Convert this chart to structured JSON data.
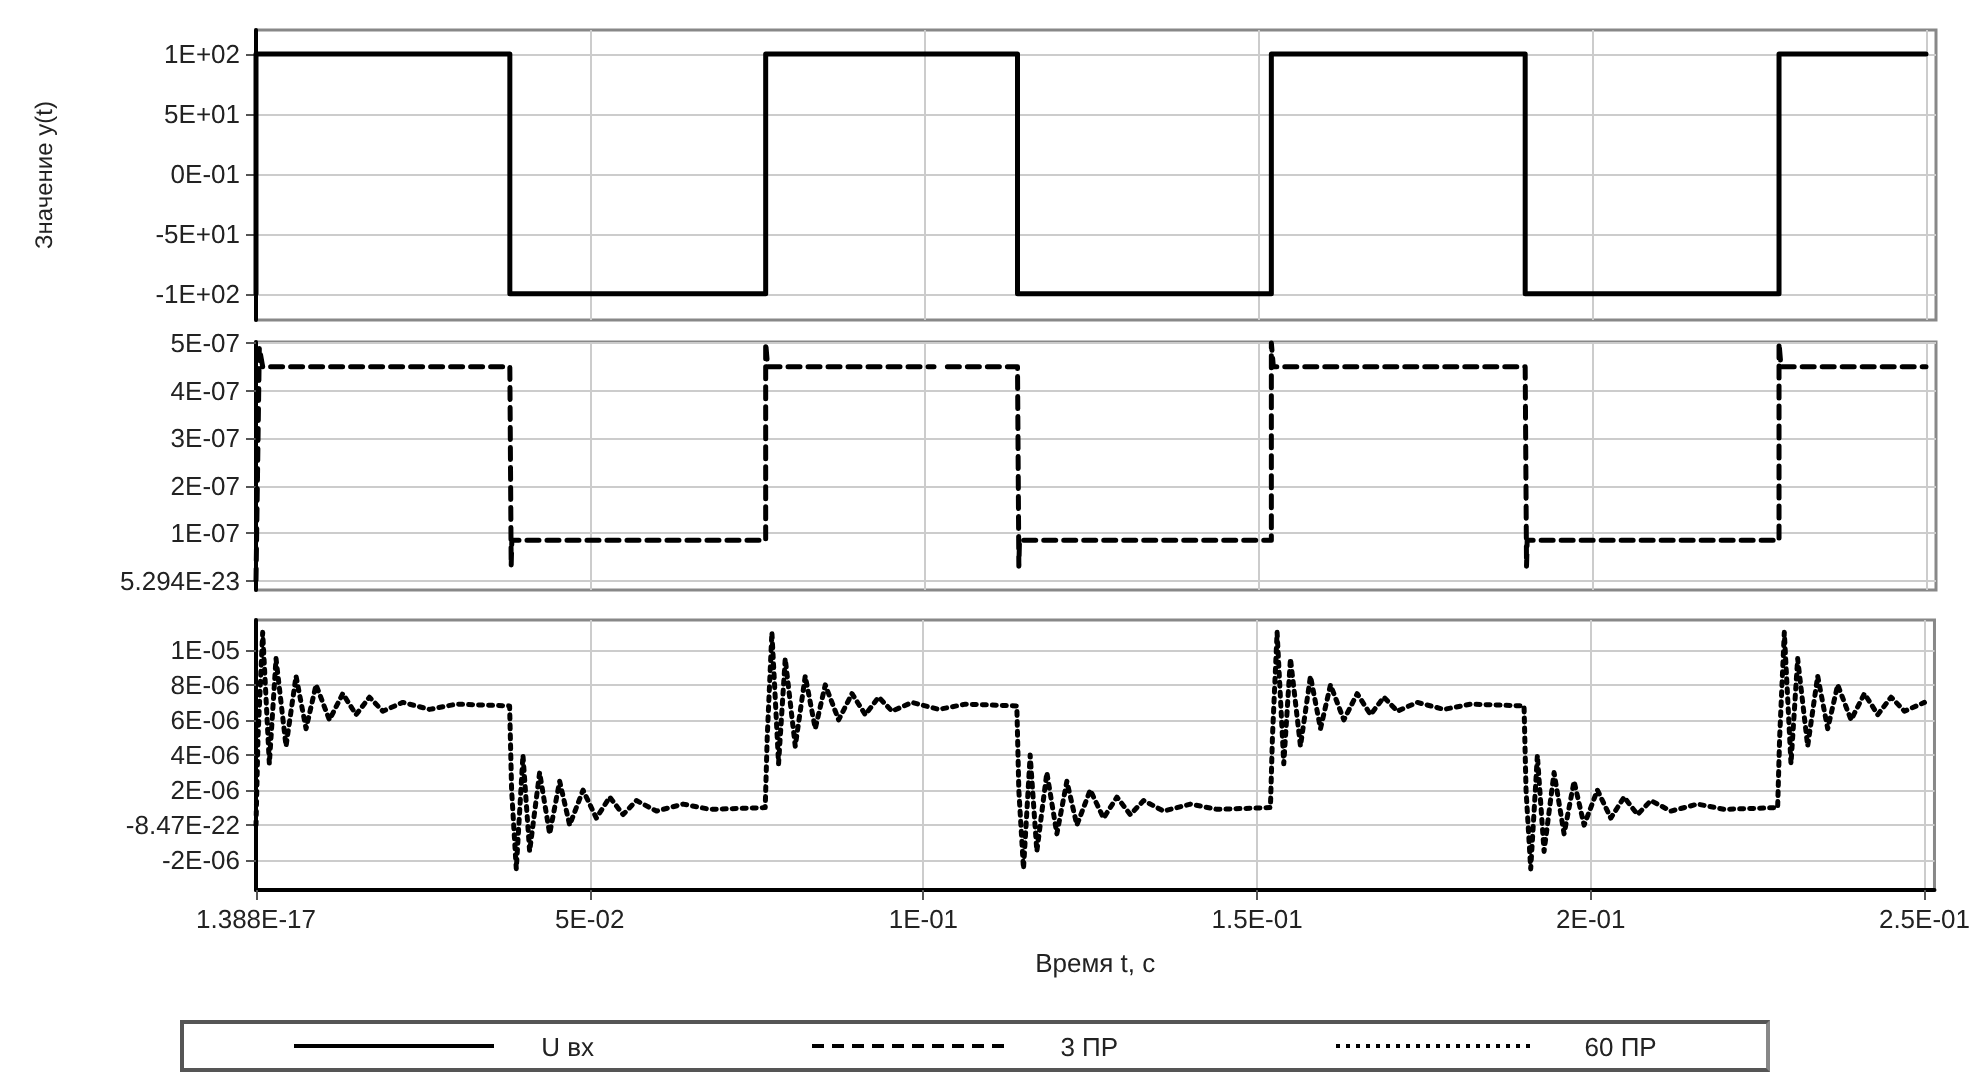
{
  "chart_data": [
    {
      "type": "line",
      "ylabel": "Значение y(t)",
      "xlim": [
        0,
        0.2515
      ],
      "ylim": [
        -122,
        120
      ],
      "xticks": [
        {
          "value": 1.388e-17,
          "label": null
        },
        {
          "value": 0.05,
          "label": null
        },
        {
          "value": 0.1,
          "label": null
        },
        {
          "value": 0.15,
          "label": null
        },
        {
          "value": 0.2,
          "label": null
        },
        {
          "value": 0.25,
          "label": null
        }
      ],
      "yticks": [
        {
          "value": -100,
          "label": "-1E+02"
        },
        {
          "value": -50,
          "label": "-5E+01"
        },
        {
          "value": 0,
          "label": "0E-01"
        },
        {
          "value": 50,
          "label": "5E+01"
        },
        {
          "value": 100,
          "label": "1E+02"
        }
      ],
      "grid": true,
      "tick_labels": "y",
      "legend": "bottom",
      "series": [
        {
          "name": "U вх",
          "color": "#000000",
          "line_style": "solid",
          "x": [
            0,
            0,
            0.038,
            0.038,
            0.0763,
            0.0763,
            0.114,
            0.114,
            0.152,
            0.152,
            0.19,
            0.19,
            0.228,
            0.228,
            0.25
          ],
          "values": [
            -100,
            100,
            100,
            -100,
            -100,
            100,
            100,
            -100,
            -100,
            100,
            100,
            -100,
            -100,
            100,
            100
          ]
        }
      ]
    },
    {
      "type": "line",
      "xlim": [
        0,
        0.2515
      ],
      "ylim": [
        -2e-08,
        5.02e-07
      ],
      "xticks": [
        {
          "value": 1.388e-17,
          "label": null
        },
        {
          "value": 0.05,
          "label": null
        },
        {
          "value": 0.1,
          "label": null
        },
        {
          "value": 0.15,
          "label": null
        },
        {
          "value": 0.2,
          "label": null
        },
        {
          "value": 0.25,
          "label": null
        }
      ],
      "yticks": [
        {
          "value": 5.294e-23,
          "label": "5.294E-23"
        },
        {
          "value": 1e-07,
          "label": "1E-07"
        },
        {
          "value": 2e-07,
          "label": "2E-07"
        },
        {
          "value": 3e-07,
          "label": "3E-07"
        },
        {
          "value": 4e-07,
          "label": "4E-07"
        },
        {
          "value": 5e-07,
          "label": "5E-07"
        }
      ],
      "grid": true,
      "tick_labels": "y",
      "legend": "bottom",
      "series": [
        {
          "name": "3 ПР",
          "color": "#000000",
          "line_style": "dashed",
          "x": [
            0,
            0.0005,
            0.001,
            0.038,
            0.0382,
            0.0383,
            0.0763,
            0.0763,
            0.0766,
            0.1015,
            0.1025,
            0.1035,
            0.114,
            0.1142,
            0.1143,
            0.152,
            0.152,
            0.1523,
            0.19,
            0.1902,
            0.1903,
            0.228,
            0.228,
            0.2283,
            0.25
          ],
          "values": [
            0,
            4.9e-07,
            4.5e-07,
            4.5e-07,
            3e-08,
            8.5e-08,
            8.5e-08,
            5e-07,
            4.5e-07,
            4.5e-07,
            null,
            4.5e-07,
            4.5e-07,
            3e-08,
            8.5e-08,
            8.5e-08,
            5e-07,
            4.5e-07,
            4.5e-07,
            3e-08,
            8.5e-08,
            8.5e-08,
            5e-07,
            4.5e-07,
            4.5e-07
          ]
        }
      ]
    },
    {
      "type": "line",
      "xlabel": "Время t, с",
      "xlim": [
        0,
        0.2515
      ],
      "ylim": [
        -3.7e-06,
        1.17e-05
      ],
      "xticks": [
        {
          "value": 1.388e-17,
          "label": "1.388E-17"
        },
        {
          "value": 0.05,
          "label": "5E-02"
        },
        {
          "value": 0.1,
          "label": "1E-01"
        },
        {
          "value": 0.15,
          "label": "1.5E-01"
        },
        {
          "value": 0.2,
          "label": "2E-01"
        },
        {
          "value": 0.25,
          "label": "2.5E-01"
        }
      ],
      "yticks": [
        {
          "value": -2e-06,
          "label": "-2E-06"
        },
        {
          "value": -8.47e-22,
          "label": "-8.47E-22"
        },
        {
          "value": 2e-06,
          "label": "2E-06"
        },
        {
          "value": 4e-06,
          "label": "4E-06"
        },
        {
          "value": 6e-06,
          "label": "6E-06"
        },
        {
          "value": 8e-06,
          "label": "8E-06"
        },
        {
          "value": 1e-05,
          "label": "1E-05"
        }
      ],
      "grid": true,
      "legend": "bottom",
      "series": [
        {
          "name": "60 ПР",
          "color": "#000000",
          "line_style": "dotted",
          "x": [
            0,
            0.0003,
            0.001,
            0.002,
            0.003,
            0.0045,
            0.006,
            0.0075,
            0.009,
            0.011,
            0.013,
            0.015,
            0.017,
            0.019,
            0.022,
            0.026,
            0.03,
            0.038,
            0.0383,
            0.039,
            0.04,
            0.041,
            0.0425,
            0.044,
            0.0455,
            0.047,
            0.049,
            0.051,
            0.053,
            0.055,
            0.057,
            0.06,
            0.064,
            0.068,
            0.0763,
            0.0766,
            0.0773,
            0.0783,
            0.0793,
            0.0808,
            0.0823,
            0.0838,
            0.0853,
            0.0873,
            0.0893,
            0.0913,
            0.0933,
            0.0953,
            0.0983,
            0.1023,
            0.1063,
            0.114,
            0.1143,
            0.115,
            0.116,
            0.117,
            0.1185,
            0.12,
            0.1215,
            0.123,
            0.125,
            0.127,
            0.129,
            0.131,
            0.133,
            0.136,
            0.14,
            0.144,
            0.152,
            0.1523,
            0.153,
            0.154,
            0.155,
            0.1565,
            0.158,
            0.1595,
            0.161,
            0.163,
            0.165,
            0.167,
            0.169,
            0.171,
            0.174,
            0.178,
            0.182,
            0.19,
            0.1903,
            0.191,
            0.192,
            0.193,
            0.1945,
            0.196,
            0.1975,
            0.199,
            0.201,
            0.203,
            0.205,
            0.207,
            0.209,
            0.212,
            0.216,
            0.22,
            0.228,
            0.2283,
            0.229,
            0.23,
            0.231,
            0.2325,
            0.234,
            0.2355,
            0.237,
            0.239,
            0.241,
            0.243,
            0.245,
            0.247,
            0.25
          ],
          "values": [
            0,
            5e-06,
            1.1e-05,
            3.5e-06,
            9.5e-06,
            4.5e-06,
            8.5e-06,
            5.5e-06,
            8e-06,
            6e-06,
            7.5e-06,
            6.3e-06,
            7.3e-06,
            6.5e-06,
            7e-06,
            6.6e-06,
            6.9e-06,
            6.8e-06,
            2e-06,
            -2.5e-06,
            4e-06,
            -1.5e-06,
            3e-06,
            -5e-07,
            2.5e-06,
            0,
            2e-06,
            4e-07,
            1.6e-06,
            6e-07,
            1.4e-06,
            8e-07,
            1.2e-06,
            9e-07,
            1e-06,
            5e-06,
            1.1e-05,
            3.5e-06,
            9.5e-06,
            4.5e-06,
            8.5e-06,
            5.5e-06,
            8e-06,
            6e-06,
            7.5e-06,
            6.3e-06,
            7.3e-06,
            6.5e-06,
            7e-06,
            6.6e-06,
            6.9e-06,
            6.8e-06,
            2e-06,
            -2.5e-06,
            4e-06,
            -1.5e-06,
            3e-06,
            -5e-07,
            2.5e-06,
            0,
            2e-06,
            4e-07,
            1.6e-06,
            6e-07,
            1.4e-06,
            8e-07,
            1.2e-06,
            9e-07,
            1e-06,
            5e-06,
            1.1e-05,
            3.5e-06,
            9.5e-06,
            4.5e-06,
            8.5e-06,
            5.5e-06,
            8e-06,
            6e-06,
            7.5e-06,
            6.3e-06,
            7.3e-06,
            6.5e-06,
            7e-06,
            6.6e-06,
            6.9e-06,
            6.8e-06,
            2e-06,
            -2.5e-06,
            4e-06,
            -1.5e-06,
            3e-06,
            -5e-07,
            2.5e-06,
            0,
            2e-06,
            4e-07,
            1.6e-06,
            6e-07,
            1.4e-06,
            8e-07,
            1.2e-06,
            9e-07,
            1e-06,
            5e-06,
            1.1e-05,
            3.5e-06,
            9.5e-06,
            4.5e-06,
            8.5e-06,
            5.5e-06,
            8e-06,
            6e-06,
            7.5e-06,
            6.3e-06,
            7.3e-06,
            6.5e-06,
            7e-06
          ]
        }
      ]
    }
  ]
}
